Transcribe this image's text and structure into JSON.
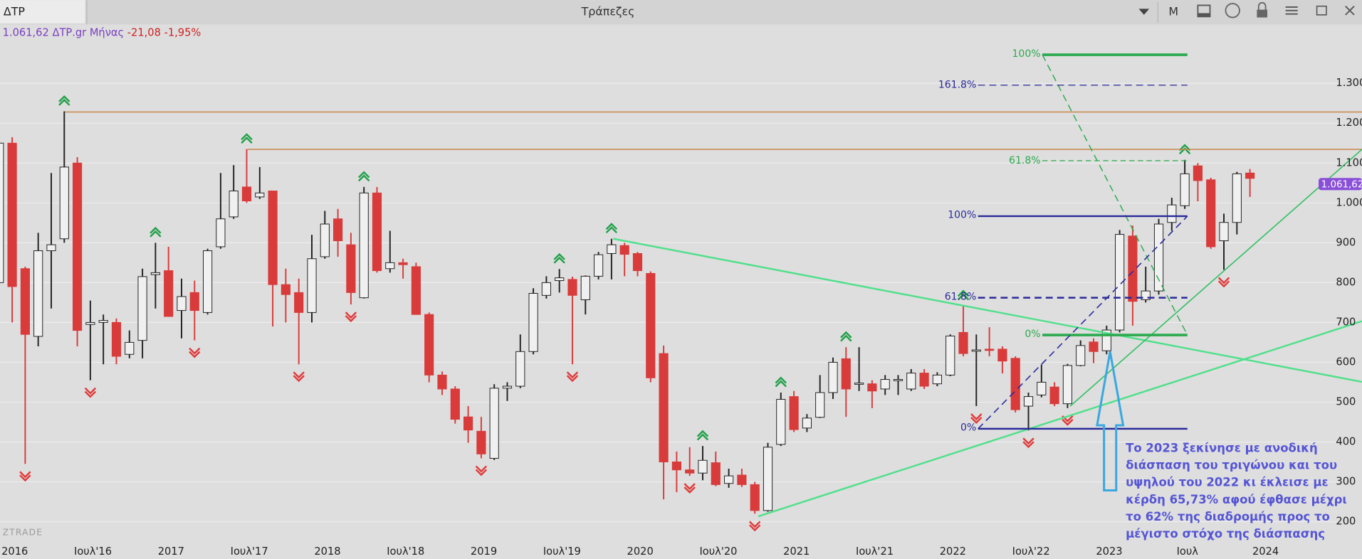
{
  "header": {
    "tab": "ΔΤΡ",
    "title": "Τράπεζες",
    "period_button": "M"
  },
  "info": {
    "price": "1.061,62",
    "symbol": "ΔΤΡ.gr",
    "period": "Μήνας",
    "change": "-21,08",
    "change_pct": "-1,95%"
  },
  "watermark": "ZTRADE",
  "last_price_label": "1.061,62",
  "fib_labels": [
    "100%",
    "161.8%",
    "61.8%",
    "100%",
    "61.8%",
    "0%",
    "0%"
  ],
  "annotation_lines": [
    "Το 2023 ξεκίνησε με ανοδική",
    "διάσπαση του τριγώνου και του",
    "υψηλού του 2022 κι έκλεισε με",
    "κέρδη 65,73% αφού έφθασε μέχρι",
    "το 62% της διαδρομής προς το",
    "μέγιστο στόχο της διάσπασης"
  ],
  "chart_data": {
    "type": "candlestick",
    "categories": [
      null,
      "2016",
      null,
      null,
      null,
      null,
      null,
      "Ιουλ'16",
      null,
      null,
      null,
      null,
      null,
      "2017",
      null,
      null,
      null,
      null,
      null,
      "Ιουλ'17",
      null,
      null,
      null,
      null,
      null,
      "2018",
      null,
      null,
      null,
      null,
      null,
      "Ιουλ'18",
      null,
      null,
      null,
      null,
      null,
      "2019",
      null,
      null,
      null,
      null,
      null,
      "Ιουλ'19",
      null,
      null,
      null,
      null,
      null,
      "2020",
      null,
      null,
      null,
      null,
      null,
      "Ιουλ'20",
      null,
      null,
      null,
      null,
      null,
      "2021",
      null,
      null,
      null,
      null,
      null,
      "Ιουλ'21",
      null,
      null,
      null,
      null,
      null,
      "2022",
      null,
      null,
      null,
      null,
      null,
      "Ιουλ'22",
      null,
      null,
      null,
      null,
      null,
      "2023",
      null,
      null,
      null,
      null,
      null,
      "Ιουλ",
      null,
      null,
      null,
      null,
      null,
      "2024"
    ],
    "open": [
      800,
      1150,
      835,
      665,
      880,
      910,
      1100,
      695,
      700,
      700,
      620,
      655,
      820,
      830,
      730,
      775,
      725,
      890,
      965,
      1040,
      1015,
      1030,
      795,
      775,
      725,
      865,
      960,
      895,
      762,
      1025,
      835,
      850,
      840,
      720,
      568,
      533,
      463,
      427,
      359,
      535,
      540,
      627,
      768,
      805,
      808,
      757,
      816,
      873,
      893,
      873,
      823,
      622,
      350,
      330,
      322,
      348,
      296,
      317,
      293,
      228,
      394,
      514,
      435,
      462,
      524,
      609,
      545,
      546,
      533,
      555,
      533,
      573,
      546,
      568,
      675,
      630,
      633,
      633,
      610,
      490,
      518,
      538,
      496,
      592,
      651,
      629,
      681,
      917,
      757,
      779,
      951,
      993,
      1093,
      1058,
      905,
      951,
      1075,
      null
    ],
    "high": [
      1225,
      1165,
      840,
      925,
      1075,
      1230,
      1115,
      755,
      720,
      710,
      680,
      835,
      900,
      890,
      810,
      805,
      885,
      1075,
      1095,
      1135,
      1090,
      1030,
      835,
      810,
      920,
      980,
      985,
      925,
      1040,
      1040,
      930,
      860,
      850,
      725,
      577,
      540,
      490,
      463,
      545,
      550,
      670,
      786,
      816,
      834,
      815,
      818,
      877,
      910,
      900,
      877,
      828,
      642,
      376,
      387,
      390,
      376,
      333,
      333,
      300,
      398,
      524,
      528,
      470,
      568,
      612,
      638,
      638,
      555,
      568,
      568,
      583,
      583,
      575,
      670,
      742,
      670,
      688,
      640,
      615,
      524,
      594,
      550,
      596,
      655,
      660,
      692,
      932,
      943,
      840,
      960,
      1013,
      1108,
      1100,
      1063,
      973,
      1078,
      1085,
      null
    ],
    "low": [
      780,
      700,
      345,
      640,
      735,
      900,
      640,
      555,
      595,
      595,
      610,
      610,
      735,
      715,
      660,
      655,
      720,
      885,
      960,
      1000,
      1010,
      690,
      700,
      595,
      700,
      860,
      865,
      745,
      760,
      825,
      825,
      810,
      720,
      550,
      518,
      446,
      398,
      359,
      355,
      503,
      535,
      620,
      760,
      775,
      595,
      720,
      808,
      808,
      816,
      816,
      550,
      256,
      274,
      315,
      304,
      289,
      285,
      287,
      220,
      225,
      390,
      425,
      425,
      460,
      508,
      463,
      528,
      485,
      518,
      518,
      528,
      533,
      540,
      565,
      615,
      490,
      615,
      572,
      474,
      429,
      512,
      490,
      485,
      590,
      598,
      620,
      675,
      692,
      750,
      770,
      930,
      985,
      1004,
      885,
      832,
      921,
      1015,
      null
    ],
    "close": [
      1150,
      790,
      670,
      880,
      895,
      1090,
      680,
      700,
      705,
      615,
      650,
      815,
      825,
      715,
      765,
      730,
      880,
      960,
      1030,
      1005,
      1025,
      795,
      770,
      725,
      860,
      947,
      905,
      775,
      1025,
      830,
      850,
      845,
      720,
      568,
      533,
      457,
      430,
      370,
      535,
      540,
      627,
      773,
      800,
      812,
      768,
      816,
      870,
      895,
      871,
      830,
      561,
      350,
      330,
      322,
      354,
      293,
      315,
      293,
      228,
      387,
      507,
      431,
      460,
      524,
      600,
      533,
      548,
      528,
      557,
      557,
      573,
      540,
      568,
      666,
      622,
      631,
      631,
      603,
      481,
      514,
      550,
      496,
      592,
      642,
      627,
      681,
      921,
      753,
      779,
      947,
      995,
      1073,
      1056,
      890,
      951,
      1073,
      1061.62,
      null
    ],
    "up_color": "#f0f0f0",
    "down_color": "#d93b3b",
    "ylim": [
      148,
      1448
    ],
    "yticks": [
      200,
      300,
      400,
      500,
      600,
      700,
      800,
      900,
      {
        "value": 1000,
        "label": "1.000"
      },
      {
        "value": 1100,
        "label": "1.100"
      },
      {
        "value": 1200,
        "label": "1.200"
      },
      {
        "value": 1300,
        "label": "1.300"
      }
    ],
    "grid": true
  }
}
